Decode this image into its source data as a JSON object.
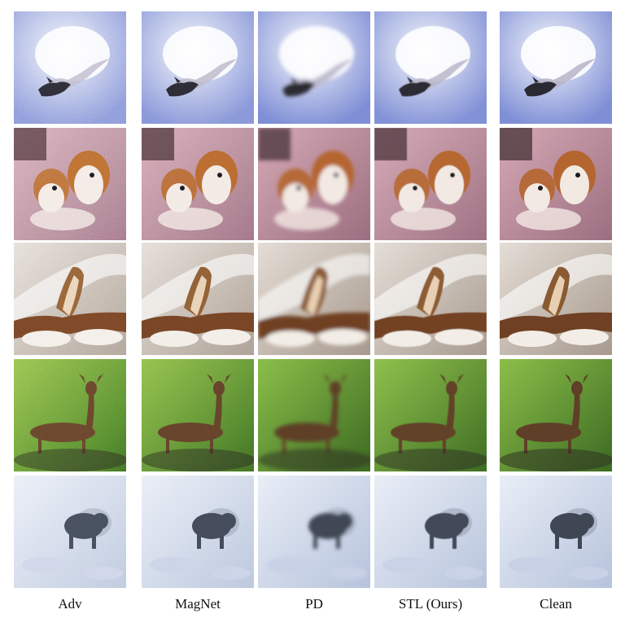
{
  "columns": [
    {
      "label": "Adv",
      "noise": 0.55,
      "blur": 0
    },
    {
      "label": "MagNet",
      "noise": 0.35,
      "blur": 0
    },
    {
      "label": "PD",
      "noise": 0.0,
      "blur": 1.6
    },
    {
      "label": "STL (Ours)",
      "noise": 0.08,
      "blur": 0.4
    },
    {
      "label": "Clean",
      "noise": 0.0,
      "blur": 0
    }
  ],
  "rows": [
    {
      "subject": "bird-in-sky",
      "bg1": "#f4f6fb",
      "bg2": "#7f8fd6",
      "fg": "#2a2a33",
      "accent": "#b7b4c8"
    },
    {
      "subject": "dogs",
      "bg1": "#d6a9b6",
      "bg2": "#9c6f80",
      "fg": "#b5652e",
      "accent": "#f2e9e3"
    },
    {
      "subject": "bird-on-snow",
      "bg1": "#e4ddd6",
      "bg2": "#a7998d",
      "fg": "#8a5a33",
      "accent": "#6f4023"
    },
    {
      "subject": "deer",
      "bg1": "#8bbf4a",
      "bg2": "#3d6a22",
      "fg": "#5f3f28",
      "accent": "#2c2a21"
    },
    {
      "subject": "animal-in-snow",
      "bg1": "#e9eef7",
      "bg2": "#b6c3db",
      "fg": "#3f4654",
      "accent": "#c8d1e6"
    }
  ]
}
